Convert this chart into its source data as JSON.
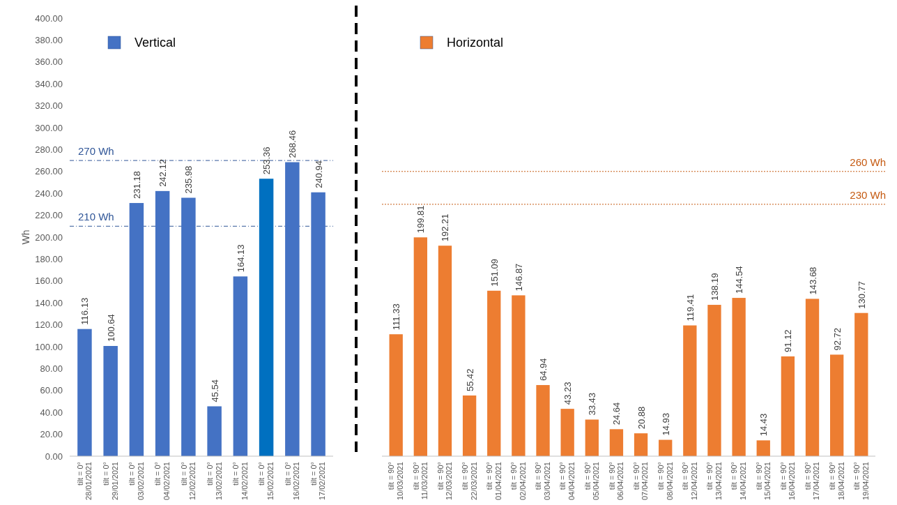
{
  "chart_data": [
    {
      "type": "bar",
      "ylabel": "Wh",
      "legend": "top left",
      "grid": false,
      "data_labels": true,
      "categories": [
        "tilt = 0°\n28/01/2021",
        "tilt = 0°\n29/01/2021",
        "tilt = 0°\n03/02/2021",
        "tilt = 0°\n04/02/2021",
        "tilt = 0°\n12/02/2021",
        "tilt = 0°\n13/02/2021",
        "tilt = 0°\n14/02/2021",
        "tilt = 0°\n15/02/2021",
        "tilt = 0°\n16/02/2021",
        "tilt = 0°\n17/02/2021"
      ],
      "series": [
        {
          "name": "Vertical",
          "color": "#4472c4",
          "colors": [
            "#4472c4",
            "#4472c4",
            "#4472c4",
            "#4472c4",
            "#4472c4",
            "#4472c4",
            "#4472c4",
            "#0070c0",
            "#4472c4",
            "#4472c4"
          ],
          "values": [
            116.13,
            100.64,
            231.18,
            242.12,
            235.98,
            45.54,
            164.13,
            253.36,
            268.46,
            240.94
          ]
        }
      ],
      "ylim": [
        0,
        400
      ],
      "yticks": [
        {
          "value": 0,
          "label": "0.00"
        },
        {
          "value": 20,
          "label": "20.00"
        },
        {
          "value": 40,
          "label": "40.00"
        },
        {
          "value": 60,
          "label": "60.00"
        },
        {
          "value": 80,
          "label": "80.00"
        },
        {
          "value": 100,
          "label": "100.00"
        },
        {
          "value": 120,
          "label": "120.00"
        },
        {
          "value": 140,
          "label": "140.00"
        },
        {
          "value": 160,
          "label": "160.00"
        },
        {
          "value": 180,
          "label": "180.00"
        },
        {
          "value": 200,
          "label": "200.00"
        },
        {
          "value": 220,
          "label": "220.00"
        },
        {
          "value": 240,
          "label": "240.00"
        },
        {
          "value": 260,
          "label": "260.00"
        },
        {
          "value": 280,
          "label": "280.00"
        },
        {
          "value": 300,
          "label": "300.00"
        },
        {
          "value": 320,
          "label": "320.00"
        },
        {
          "value": 340,
          "label": "340.00"
        },
        {
          "value": 360,
          "label": "360.00"
        },
        {
          "value": 380,
          "label": "380.00"
        },
        {
          "value": 400,
          "label": "400.00"
        }
      ],
      "ref_lines": [
        {
          "axis": "y",
          "value": 270,
          "label": "270 Wh",
          "color": "#2f5597",
          "line_style": "dashed"
        },
        {
          "axis": "y",
          "value": 210,
          "label": "210 Wh",
          "color": "#2f5597",
          "line_style": "dashed"
        }
      ]
    },
    {
      "type": "bar",
      "legend": "top left",
      "grid": false,
      "data_labels": true,
      "tick_labels": "x",
      "categories": [
        "tilt = 90°\n10/03/2021",
        "tilt = 90°\n11/03/2021",
        "tilt = 90°\n12/03/2021",
        "tilt = 90°\n22/03/2021",
        "tilt = 90°\n01/04/2021",
        "tilt = 90°\n02/04/2021",
        "tilt = 90°\n03/04/2021",
        "tilt = 90°\n04/04/2021",
        "tilt = 90°\n05/04/2021",
        "tilt = 90°\n06/04/2021",
        "tilt = 90°\n07/04/2021",
        "tilt = 90°\n08/04/2021",
        "tilt = 90°\n12/04/2021",
        "tilt = 90°\n13/04/2021",
        "tilt = 90°\n14/04/2021",
        "tilt = 90°\n15/04/2021",
        "tilt = 90°\n16/04/2021",
        "tilt = 90°\n17/04/2021",
        "tilt = 90°\n18/04/2021",
        "tilt = 90°\n19/04/2021"
      ],
      "series": [
        {
          "name": "Horizontal",
          "color": "#ed7d31",
          "values": [
            111.33,
            199.81,
            192.21,
            55.42,
            151.09,
            146.87,
            64.94,
            43.23,
            33.43,
            24.64,
            20.88,
            14.93,
            119.41,
            138.19,
            144.54,
            14.43,
            91.12,
            143.68,
            92.72,
            130.77
          ]
        }
      ],
      "ylim": [
        0,
        400
      ],
      "ref_lines": [
        {
          "axis": "y",
          "value": 260,
          "label": "260 Wh",
          "color": "#c55a11",
          "line_style": "dotted"
        },
        {
          "axis": "y",
          "value": 230,
          "label": "230 Wh",
          "color": "#c55a11",
          "line_style": "dotted"
        }
      ]
    }
  ]
}
